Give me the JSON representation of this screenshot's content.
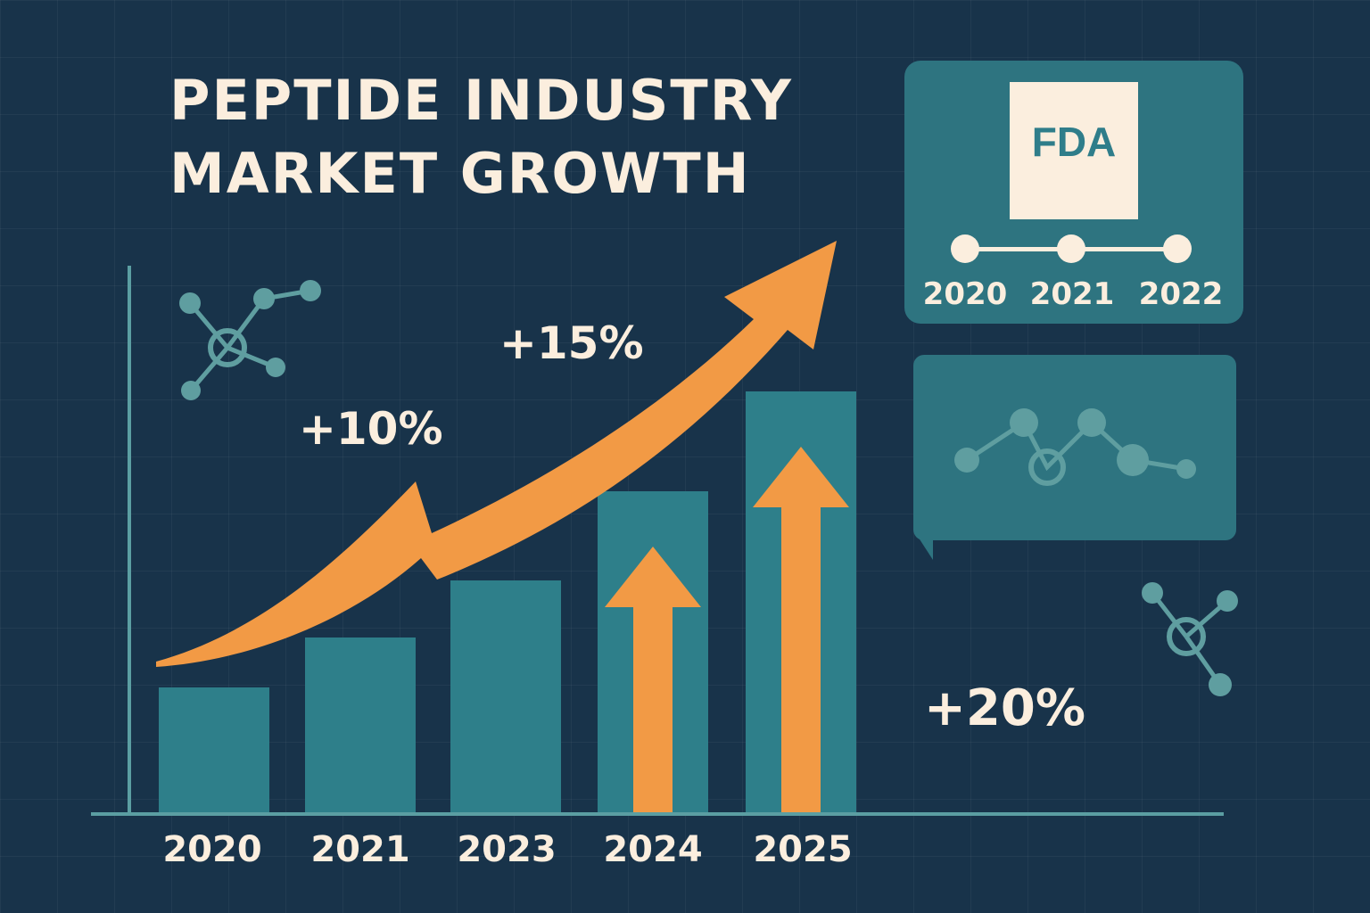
{
  "title_line1": "PEPTIDE INDUSTRY",
  "title_line2": "MARKET GROWTH",
  "chart_data": {
    "type": "bar",
    "categories": [
      "2020",
      "2021",
      "2023",
      "2024",
      "2025"
    ],
    "values": [
      35,
      49,
      65,
      90,
      118
    ],
    "ylim": [
      0,
      150
    ],
    "grid": true,
    "legend": "none",
    "annotations": [
      "+10%",
      "+15%",
      "+20%"
    ]
  },
  "fda_panel": {
    "logo_text": "FDA",
    "timeline_years": [
      "2020",
      "2021",
      "2022"
    ]
  },
  "colors": {
    "background": "#18334a",
    "bar": "#2e7f8a",
    "arrow": "#f29a45",
    "text": "#fbeede",
    "card": "#2e7480",
    "molecule": "#5f9ea0"
  },
  "icons": [
    "molecule-icon",
    "growth-arrow-icon",
    "fda-logo-icon"
  ]
}
